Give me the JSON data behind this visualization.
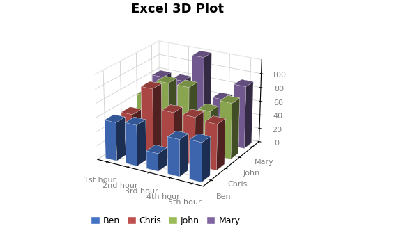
{
  "title": "Excel 3D Plot",
  "categories": [
    "1st hour",
    "2nd hour",
    "3rd hour",
    "4th hour",
    "5th hour"
  ],
  "series": [
    "Ben",
    "Chris",
    "John",
    "Mary"
  ],
  "values": {
    "Ben": [
      55,
      58,
      25,
      52,
      55
    ],
    "Chris": [
      52,
      95,
      68,
      68,
      65
    ],
    "John": [
      65,
      90,
      90,
      62,
      80
    ],
    "Mary": [
      80,
      80,
      120,
      65,
      90
    ]
  },
  "colors": {
    "Ben": "#4472C4",
    "Chris": "#C0504D",
    "John": "#9BBB59",
    "Mary": "#8064A2"
  },
  "zlim": [
    0,
    120
  ],
  "zticks": [
    0,
    20,
    40,
    60,
    80,
    100
  ],
  "bar_width": 0.55,
  "bar_depth": 0.55,
  "legend_colors": [
    "#4472C4",
    "#C0504D",
    "#9BBB59",
    "#8064A2"
  ],
  "legend_labels": [
    "Ben",
    "Chris",
    "John",
    "Mary"
  ],
  "axis_label_color": "#808080",
  "grid_color": "#d0d0d0",
  "background_color": "#ffffff",
  "title_fontsize": 13,
  "tick_fontsize": 8,
  "legend_fontsize": 9,
  "elev": 22,
  "azim": -60
}
